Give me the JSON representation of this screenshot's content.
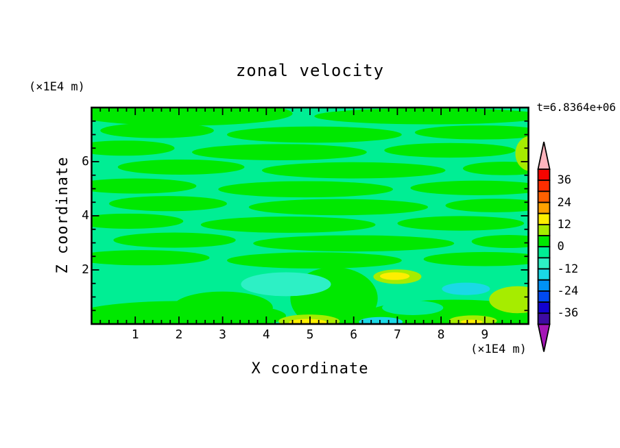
{
  "title": "zonal velocity",
  "timestamp": "t=6.8364e+06",
  "axes": {
    "x": {
      "label": "X coordinate",
      "unit": "(×1E4 m)",
      "major_ticks": [
        1,
        2,
        3,
        4,
        5,
        6,
        7,
        8,
        9
      ],
      "range": [
        0,
        10
      ],
      "minor_step": 0.2
    },
    "z": {
      "label": "Z coordinate",
      "unit": "(×1E4 m)",
      "major_ticks": [
        2,
        4,
        6
      ],
      "range": [
        0,
        8
      ],
      "minor_step": 0.5
    }
  },
  "colorbar": {
    "tick_labels": [
      "36",
      "24",
      "12",
      "0",
      "-12",
      "-24",
      "-36"
    ],
    "tick_values": [
      36,
      24,
      12,
      0,
      -12,
      -24,
      -36
    ],
    "segment_values_top_to_bottom": [
      "36..42",
      "30..36",
      "24..30",
      "18..24",
      "12..18",
      "6..12",
      "0..6",
      "-6..0",
      "-12..-6",
      "-18..-12",
      "-24..-18",
      "-30..-24",
      "-36..-30",
      "-42..-36"
    ],
    "segment_colors_top_to_bottom": [
      "#f50400",
      "#fd2e00",
      "#ff6000",
      "#ffa200",
      "#fdee00",
      "#a6ec00",
      "#00e800",
      "#00ee94",
      "#2df0c5",
      "#1ad9e6",
      "#0092f5",
      "#0049f0",
      "#1202cf",
      "#3e0ba2"
    ],
    "over_arrow_color": "#ffb4bd",
    "under_arrow_color": "#a416b6",
    "outline_color": "#000000"
  },
  "chart_data": {
    "type": "heatmap",
    "subtype": "filled-contour",
    "title": "zonal velocity",
    "xlabel": "X coordinate",
    "ylabel": "Z coordinate",
    "axis_scale_note": "(×1E4 m)",
    "time_annotation": "t=6.8364e+06",
    "xlim": [
      0,
      10
    ],
    "ylim": [
      0,
      8
    ],
    "contour_interval": 6,
    "levels": [
      -42,
      -36,
      -30,
      -24,
      -18,
      -12,
      -6,
      0,
      6,
      12,
      18,
      24,
      30,
      36,
      42
    ],
    "background_value_band": "-6..0",
    "palette": {
      "green": "#00e800",
      "mint": "#00ee94",
      "chartreuse": "#a6ec00",
      "yellow": "#fdee00",
      "aqua": "#2df0c5",
      "cyan": "#1ad9e6"
    },
    "lens_format": [
      "x0",
      "x1",
      "z_center",
      "z_half_height",
      "color"
    ],
    "lenses": [
      [
        -0.4,
        4.6,
        7.78,
        0.45,
        "green"
      ],
      [
        5.1,
        10.4,
        7.68,
        0.3,
        "green"
      ],
      [
        0.2,
        2.8,
        7.15,
        0.28,
        "green"
      ],
      [
        3.1,
        7.1,
        7.0,
        0.3,
        "green"
      ],
      [
        7.4,
        10.4,
        7.08,
        0.26,
        "green"
      ],
      [
        -0.4,
        1.9,
        6.5,
        0.28,
        "green"
      ],
      [
        2.3,
        6.3,
        6.35,
        0.3,
        "green"
      ],
      [
        6.7,
        9.7,
        6.42,
        0.27,
        "green"
      ],
      [
        0.6,
        3.5,
        5.8,
        0.28,
        "green"
      ],
      [
        3.9,
        8.1,
        5.68,
        0.3,
        "green"
      ],
      [
        8.5,
        10.4,
        5.75,
        0.25,
        "green"
      ],
      [
        -0.4,
        2.4,
        5.1,
        0.28,
        "green"
      ],
      [
        2.9,
        6.9,
        4.98,
        0.3,
        "green"
      ],
      [
        7.3,
        10.4,
        5.03,
        0.27,
        "green"
      ],
      [
        0.4,
        3.1,
        4.45,
        0.28,
        "green"
      ],
      [
        3.6,
        7.7,
        4.32,
        0.3,
        "green"
      ],
      [
        8.1,
        10.4,
        4.38,
        0.25,
        "green"
      ],
      [
        -0.4,
        2.1,
        3.8,
        0.28,
        "green"
      ],
      [
        2.5,
        6.5,
        3.67,
        0.3,
        "green"
      ],
      [
        7.0,
        9.9,
        3.72,
        0.27,
        "green"
      ],
      [
        0.5,
        3.3,
        3.1,
        0.28,
        "green"
      ],
      [
        3.7,
        8.3,
        2.98,
        0.3,
        "green"
      ],
      [
        8.7,
        10.4,
        3.05,
        0.24,
        "green"
      ],
      [
        -0.4,
        2.7,
        2.45,
        0.28,
        "green"
      ],
      [
        3.1,
        7.1,
        2.35,
        0.3,
        "green"
      ],
      [
        7.6,
        10.4,
        2.4,
        0.26,
        "green"
      ],
      [
        -0.4,
        4.45,
        0.3,
        0.55,
        "green"
      ],
      [
        1.85,
        4.15,
        0.6,
        0.6,
        "green"
      ],
      [
        4.55,
        6.55,
        0.95,
        1.15,
        "green"
      ],
      [
        6.2,
        10.4,
        0.3,
        0.6,
        "green"
      ],
      [
        7.15,
        10.4,
        0.1,
        0.35,
        "green"
      ],
      [
        6.65,
        8.05,
        0.6,
        0.27,
        "mint"
      ],
      [
        3.42,
        5.48,
        1.47,
        0.44,
        "aqua"
      ],
      [
        6.45,
        7.55,
        1.75,
        0.27,
        "chartreuse"
      ],
      [
        6.6,
        7.28,
        1.77,
        0.14,
        "yellow"
      ],
      [
        8.02,
        9.12,
        1.3,
        0.23,
        "cyan"
      ],
      [
        9.1,
        10.4,
        0.9,
        0.5,
        "chartreuse"
      ],
      [
        9.7,
        10.4,
        6.3,
        0.65,
        "chartreuse"
      ],
      [
        4.28,
        5.68,
        0.1,
        0.25,
        "chartreuse"
      ],
      [
        4.52,
        5.38,
        0.06,
        0.13,
        "yellow"
      ],
      [
        6.12,
        7.12,
        0.08,
        0.18,
        "cyan"
      ],
      [
        8.18,
        9.28,
        0.12,
        0.2,
        "chartreuse"
      ],
      [
        8.45,
        8.95,
        0.08,
        0.08,
        "yellow"
      ]
    ]
  }
}
